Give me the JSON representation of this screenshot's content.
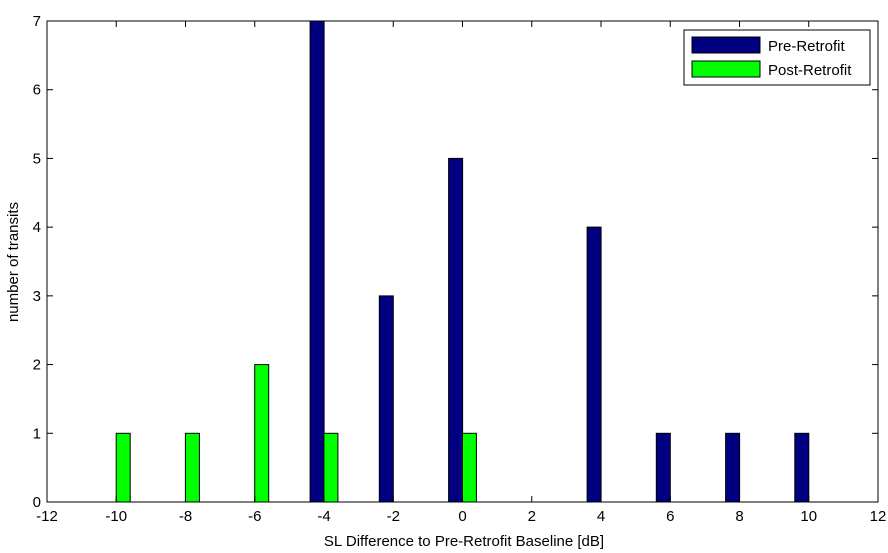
{
  "chart_data": {
    "type": "bar",
    "xlabel": "SL Difference to Pre-Retrofit Baseline [dB]",
    "ylabel": "number of transits",
    "xlim": [
      -12,
      12
    ],
    "ylim": [
      0,
      7
    ],
    "xticks": [
      -12,
      -10,
      -8,
      -6,
      -4,
      -2,
      0,
      2,
      4,
      6,
      8,
      10,
      12
    ],
    "yticks": [
      0,
      1,
      2,
      3,
      4,
      5,
      6,
      7
    ],
    "grid": false,
    "legend_position": "top-right",
    "series": [
      {
        "name": "Pre-Retrofit",
        "color": "#000080",
        "x": [
          -4.2,
          -2.2,
          -0.2,
          3.8,
          5.8,
          7.8,
          9.8
        ],
        "values": [
          7,
          3,
          5,
          4,
          1,
          1,
          1
        ]
      },
      {
        "name": "Post-Retrofit",
        "color": "#00ff00",
        "x": [
          -9.8,
          -7.8,
          -5.8,
          -3.8,
          0.2
        ],
        "values": [
          1,
          1,
          2,
          1,
          1
        ]
      }
    ]
  }
}
